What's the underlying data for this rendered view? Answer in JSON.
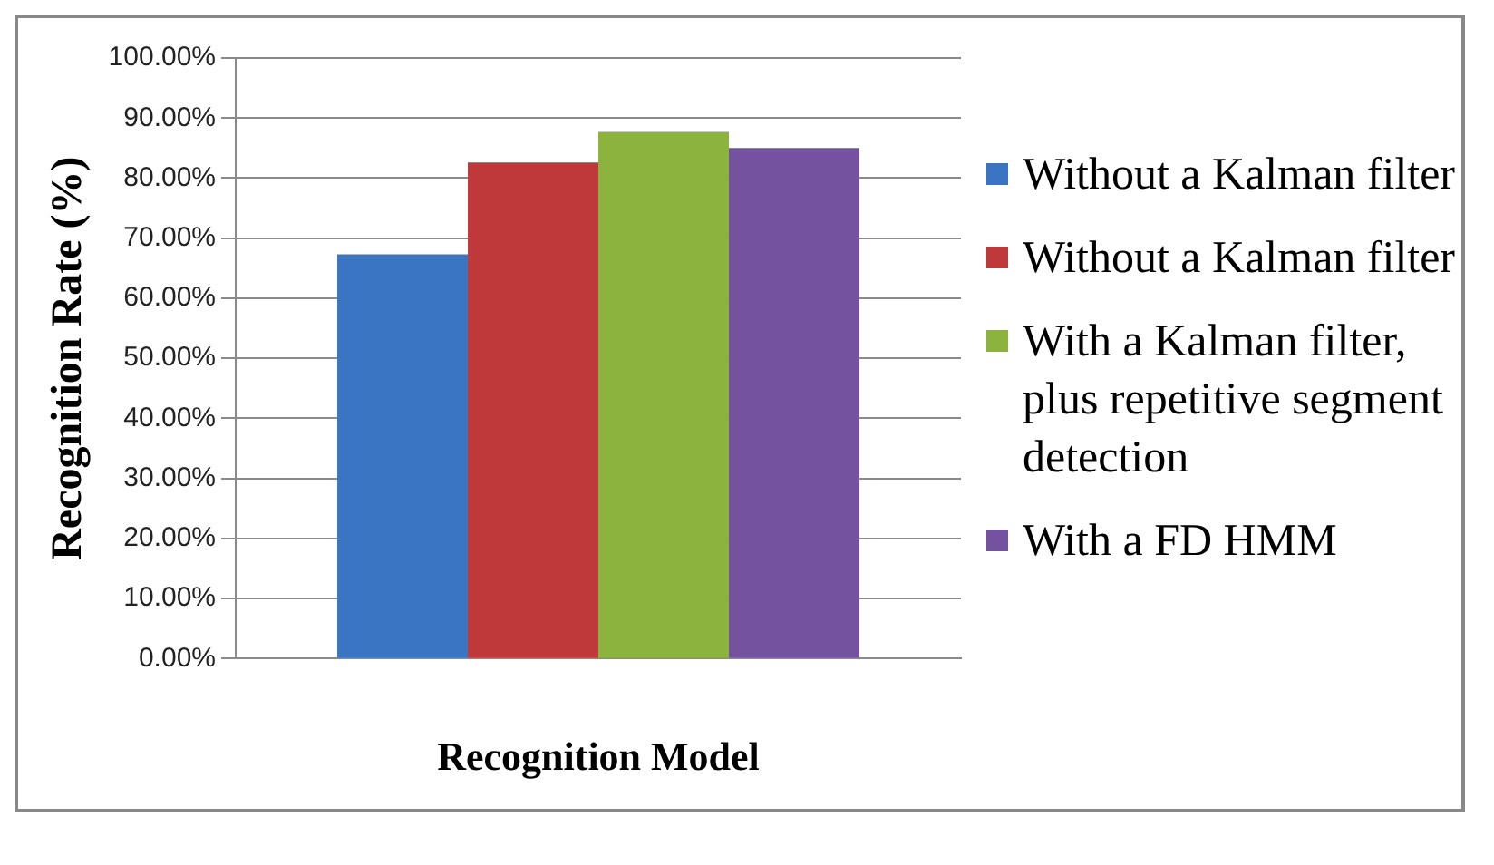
{
  "chart_data": {
    "type": "bar",
    "xlabel": "Recognition Model",
    "ylabel": "Recognition Rate (%)",
    "categories": [
      null
    ],
    "series": [
      {
        "name": "Without a Kalman filter",
        "color": "#3a75c4",
        "values": [
          67.3
        ]
      },
      {
        "name": "Without a Kalman filter",
        "color": "#c0393a",
        "values": [
          82.6
        ]
      },
      {
        "name": "With a Kalman filter, plus repetitive segment detection",
        "color": "#8db33f",
        "values": [
          87.7
        ]
      },
      {
        "name": "With a FD HMM",
        "color": "#7452a0",
        "values": [
          85.0
        ]
      }
    ],
    "ylim": [
      0,
      100
    ],
    "yticks": [
      {
        "value": 0,
        "label": "0.00%"
      },
      {
        "value": 10,
        "label": "10.00%"
      },
      {
        "value": 20,
        "label": "20.00%"
      },
      {
        "value": 30,
        "label": "30.00%"
      },
      {
        "value": 40,
        "label": "40.00%"
      },
      {
        "value": 50,
        "label": "50.00%"
      },
      {
        "value": 60,
        "label": "60.00%"
      },
      {
        "value": 70,
        "label": "70.00%"
      },
      {
        "value": 80,
        "label": "80.00%"
      },
      {
        "value": 90,
        "label": "90.00%"
      },
      {
        "value": 100,
        "label": "100.00%"
      }
    ],
    "grid": "y",
    "legend": "right"
  }
}
